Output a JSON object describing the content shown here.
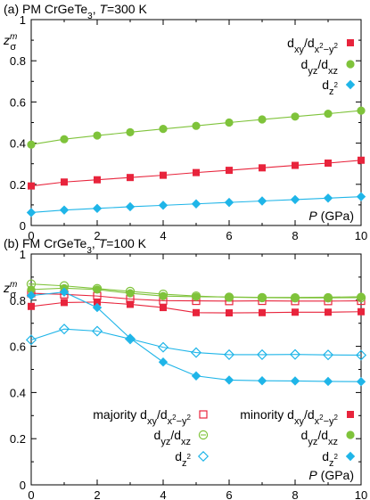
{
  "chart_data": [
    {
      "type": "line",
      "panel": "(a)",
      "title_parts": [
        "(a) PM CrGeTe",
        "3",
        ", ",
        "T",
        "=300 K"
      ],
      "xlabel_parts": [
        "P",
        " (GPa)"
      ],
      "ylabel_parts": [
        "z",
        "m",
        "σ"
      ],
      "xlim": [
        0,
        10
      ],
      "ylim": [
        0,
        1
      ],
      "xticks": [
        "0",
        "2",
        "4",
        "6",
        "8",
        "10"
      ],
      "yticks": [
        "0",
        "0.2",
        "0.4",
        "0.6",
        "0.8",
        "1"
      ],
      "x": [
        0,
        1,
        2,
        3,
        4,
        5,
        6,
        7,
        8,
        9,
        10
      ],
      "series": [
        {
          "key": "xy",
          "color": "#e8243c",
          "marker": "square",
          "filled": true,
          "values": [
            0.192,
            0.211,
            0.222,
            0.233,
            0.244,
            0.257,
            0.268,
            0.28,
            0.292,
            0.303,
            0.317
          ]
        },
        {
          "key": "yz",
          "color": "#7fc33b",
          "marker": "circle",
          "filled": true,
          "values": [
            0.393,
            0.419,
            0.437,
            0.453,
            0.469,
            0.484,
            0.5,
            0.515,
            0.529,
            0.543,
            0.558
          ]
        },
        {
          "key": "z2",
          "color": "#1fb5e8",
          "marker": "diamond",
          "filled": true,
          "values": [
            0.063,
            0.075,
            0.083,
            0.091,
            0.098,
            0.105,
            0.112,
            0.119,
            0.126,
            0.133,
            0.14
          ]
        }
      ],
      "legend": [
        {
          "key": "xy",
          "prefix": "",
          "label_parts": [
            "d",
            "xy",
            "/d",
            "x",
            "2",
            "−y",
            "2"
          ]
        },
        {
          "key": "yz",
          "prefix": "",
          "label_parts": [
            "d",
            "yz",
            "/d",
            "xz"
          ]
        },
        {
          "key": "z2",
          "prefix": "",
          "label_parts": [
            "d",
            "z",
            "2"
          ]
        }
      ]
    },
    {
      "type": "line",
      "panel": "(b)",
      "title_parts": [
        "(b) FM CrGeTe",
        "3",
        ", ",
        "T",
        "=100 K"
      ],
      "xlabel_parts": [
        "P",
        " (GPa)"
      ],
      "ylabel_parts": [
        "z",
        "m",
        "σ"
      ],
      "xlim": [
        0,
        10
      ],
      "ylim": [
        0,
        1
      ],
      "xticks": [
        "0",
        "2",
        "4",
        "6",
        "8",
        "10"
      ],
      "yticks": [
        "0",
        "0.2",
        "0.4",
        "0.6",
        "0.8",
        "1"
      ],
      "x": [
        0,
        1,
        2,
        3,
        4,
        5,
        6,
        7,
        8,
        9,
        10
      ],
      "series": [
        {
          "key": "maj_xy",
          "color": "#e8243c",
          "marker": "square",
          "filled": false,
          "values": [
            0.83,
            0.825,
            0.818,
            0.805,
            0.798,
            0.797,
            0.796,
            0.797,
            0.796,
            0.796,
            0.797
          ]
        },
        {
          "key": "maj_yz",
          "color": "#7fc33b",
          "marker": "circle",
          "filled": false,
          "values": [
            0.87,
            0.862,
            0.85,
            0.838,
            0.826,
            0.818,
            0.813,
            0.811,
            0.81,
            0.81,
            0.811
          ]
        },
        {
          "key": "maj_z2",
          "color": "#1fb5e8",
          "marker": "diamond",
          "filled": false,
          "values": [
            0.628,
            0.675,
            0.666,
            0.632,
            0.596,
            0.573,
            0.564,
            0.564,
            0.565,
            0.563,
            0.562
          ]
        },
        {
          "key": "min_xy",
          "color": "#e8243c",
          "marker": "square",
          "filled": true,
          "values": [
            0.773,
            0.79,
            0.792,
            0.782,
            0.768,
            0.746,
            0.745,
            0.746,
            0.748,
            0.748,
            0.75
          ]
        },
        {
          "key": "min_yz",
          "color": "#7fc33b",
          "marker": "circle",
          "filled": true,
          "values": [
            0.846,
            0.852,
            0.846,
            0.83,
            0.818,
            0.815,
            0.814,
            0.812,
            0.812,
            0.813,
            0.815
          ]
        },
        {
          "key": "min_z2",
          "color": "#1fb5e8",
          "marker": "diamond",
          "filled": true,
          "values": [
            0.82,
            0.835,
            0.768,
            0.635,
            0.532,
            0.472,
            0.454,
            0.451,
            0.45,
            0.448,
            0.447
          ]
        }
      ],
      "legend": [
        {
          "key": "maj_xy",
          "prefix": "majority ",
          "label_parts": [
            "d",
            "xy",
            "/d",
            "x",
            "2",
            "−y",
            "2"
          ]
        },
        {
          "key": "maj_yz",
          "prefix": "",
          "label_parts": [
            "d",
            "yz",
            "/d",
            "xz"
          ]
        },
        {
          "key": "maj_z2",
          "prefix": "",
          "label_parts": [
            "d",
            "z",
            "2"
          ]
        },
        {
          "key": "min_xy",
          "prefix": "minority ",
          "label_parts": [
            "d",
            "xy",
            "/d",
            "x",
            "2",
            "−y",
            "2"
          ]
        },
        {
          "key": "min_yz",
          "prefix": "",
          "label_parts": [
            "d",
            "yz",
            "/d",
            "xz"
          ]
        },
        {
          "key": "min_z2",
          "prefix": "",
          "label_parts": [
            "d",
            "z",
            "2"
          ]
        }
      ]
    }
  ]
}
